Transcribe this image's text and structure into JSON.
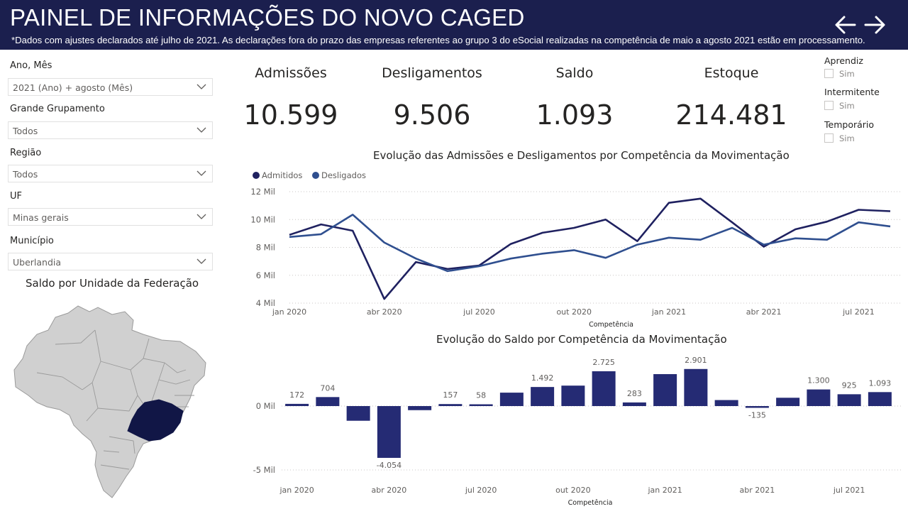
{
  "header": {
    "title": "PAINEL DE INFORMAÇÕES DO NOVO CAGED",
    "note": "*Dados com ajustes declarados até julho de 2021. As declarações fora do prazo das empresas referentes ao grupo 3 do eSocial realizadas na competência de maio a agosto 2021 estão em processamento.",
    "back_icon": "arrow-left-icon",
    "forward_icon": "arrow-right-icon"
  },
  "filters": [
    {
      "label": "Ano, Mês",
      "value": "2021 (Ano) + agosto (Mês)"
    },
    {
      "label": "Grande Grupamento",
      "value": "Todos"
    },
    {
      "label": "Região",
      "value": "Todos"
    },
    {
      "label": "UF",
      "value": "Minas gerais"
    },
    {
      "label": "Município",
      "value": "Uberlandia"
    }
  ],
  "map": {
    "title": "Saldo por Unidade da Federação",
    "highlight_color": "#111646",
    "base_color": "#d0d0d0"
  },
  "kpis": [
    {
      "label": "Admissões",
      "value": "10.599"
    },
    {
      "label": "Desligamentos",
      "value": "9.506"
    },
    {
      "label": "Saldo",
      "value": "1.093"
    },
    {
      "label": "Estoque",
      "value": "214.481"
    }
  ],
  "slicers": [
    {
      "title": "Aprendiz",
      "option": "Sim"
    },
    {
      "title": "Intermitente",
      "option": "Sim"
    },
    {
      "title": "Temporário",
      "option": "Sim"
    }
  ],
  "colors": {
    "header_bg": "#1b1f4e",
    "admitidos": "#1f2160",
    "desligados": "#2f4f8f",
    "bar": "#252b74"
  },
  "chart_data": [
    {
      "type": "line",
      "title": "Evolução das Admissões e Desligamentos por Competência da Movimentação",
      "xlabel": "Competência",
      "ylabel": "",
      "x": [
        "jan 2020",
        "fev 2020",
        "mar 2020",
        "abr 2020",
        "mai 2020",
        "jun 2020",
        "jul 2020",
        "ago 2020",
        "set 2020",
        "out 2020",
        "nov 2020",
        "dez 2020",
        "jan 2021",
        "fev 2021",
        "mar 2021",
        "abr 2021",
        "mai 2021",
        "jun 2021",
        "jul 2021",
        "ago 2021"
      ],
      "x_tick_labels": [
        "jan 2020",
        "abr 2020",
        "jul 2020",
        "out 2020",
        "jan 2021",
        "abr 2021",
        "jul 2021"
      ],
      "y_tick_labels": [
        "4 Mil",
        "6 Mil",
        "8 Mil",
        "10 Mil",
        "12 Mil"
      ],
      "y_ticks": [
        4000,
        6000,
        8000,
        10000,
        12000
      ],
      "ylim": [
        4000,
        12000
      ],
      "legend_position": "top-left",
      "grid": true,
      "series": [
        {
          "name": "Admitidos",
          "values": [
            8900,
            9650,
            9200,
            4300,
            6950,
            6450,
            6700,
            8250,
            9050,
            9400,
            10000,
            8450,
            11200,
            11500,
            9800,
            8050,
            9300,
            9850,
            10700,
            10599
          ]
        },
        {
          "name": "Desligados",
          "values": [
            8750,
            8950,
            10350,
            8350,
            7200,
            6300,
            6650,
            7200,
            7550,
            7800,
            7250,
            8200,
            8700,
            8550,
            9400,
            8200,
            8650,
            8550,
            9800,
            9506
          ]
        }
      ]
    },
    {
      "type": "bar",
      "title": "Evolução do Saldo por Competência da Movimentação",
      "xlabel": "Competência",
      "ylabel": "",
      "categories": [
        "jan 2020",
        "fev 2020",
        "mar 2020",
        "abr 2020",
        "mai 2020",
        "jun 2020",
        "jul 2020",
        "ago 2020",
        "set 2020",
        "out 2020",
        "nov 2020",
        "dez 2020",
        "jan 2021",
        "fev 2021",
        "mar 2021",
        "abr 2021",
        "mai 2021",
        "jun 2021",
        "jul 2021",
        "ago 2021"
      ],
      "x_tick_labels": [
        "jan 2020",
        "abr 2020",
        "jul 2020",
        "out 2020",
        "jan 2021",
        "abr 2021",
        "jul 2021"
      ],
      "y_tick_labels": [
        "0 Mil",
        "-5 Mil"
      ],
      "y_ticks": [
        0,
        -5000
      ],
      "ylim": [
        -5000,
        3200
      ],
      "values": [
        172,
        704,
        -1150,
        -4054,
        -320,
        157,
        58,
        1050,
        1492,
        1600,
        2725,
        283,
        2500,
        2901,
        470,
        -135,
        650,
        1300,
        925,
        1093
      ],
      "data_labels": [
        "172",
        "704",
        "",
        "-4.054",
        "",
        "157",
        "58",
        "",
        "1.492",
        "",
        "2.725",
        "283",
        "",
        "2.901",
        "",
        "-135",
        "",
        "1.300",
        "925",
        "1.093"
      ]
    }
  ]
}
